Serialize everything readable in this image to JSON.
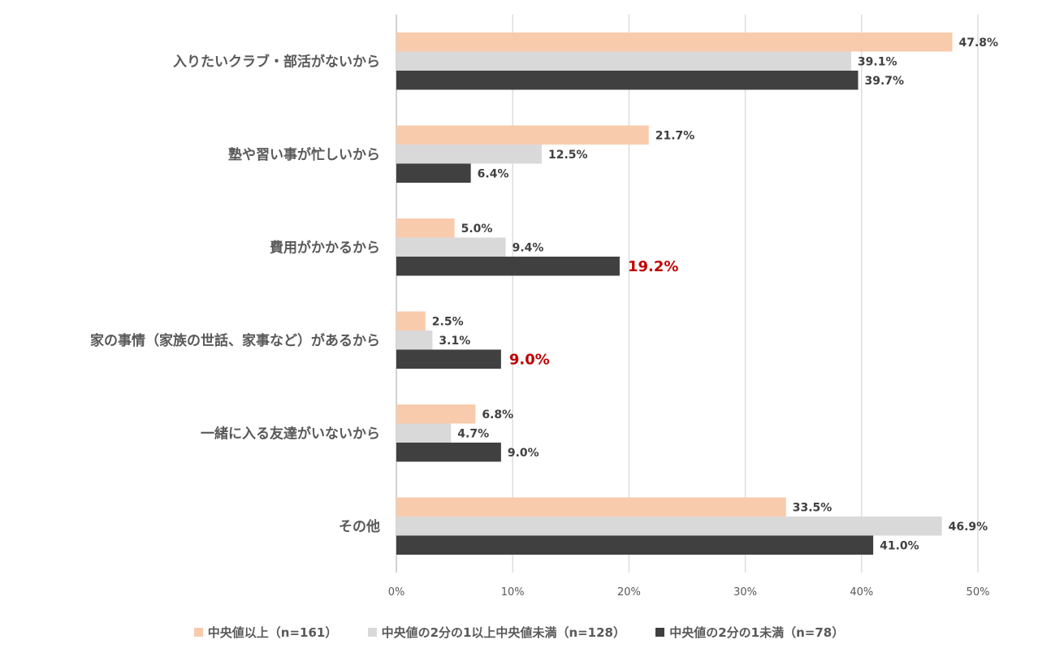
{
  "chart_data": {
    "type": "bar",
    "orientation": "horizontal",
    "categories": [
      "入りたいクラブ・部活がないから",
      "塾や習い事が忙しいから",
      "費用がかかるから",
      "家の事情（家族の世話、家事など）があるから",
      "一緒に入る友達がいないから",
      "その他"
    ],
    "series": [
      {
        "name": "中央値以上（n=161）",
        "color": "#f8cbad",
        "values": [
          47.8,
          21.7,
          5.0,
          2.5,
          6.8,
          33.5
        ],
        "labels": [
          "47.8%",
          "21.7%",
          "5.0%",
          "2.5%",
          "6.8%",
          "33.5%"
        ],
        "highlight": [
          false,
          false,
          false,
          false,
          false,
          false
        ]
      },
      {
        "name": "中央値の2分の1以上中央値未満（n=128）",
        "color": "#d9d9d9",
        "values": [
          39.1,
          12.5,
          9.4,
          3.1,
          4.7,
          46.9
        ],
        "labels": [
          "39.1%",
          "12.5%",
          "9.4%",
          "3.1%",
          "4.7%",
          "46.9%"
        ],
        "highlight": [
          false,
          false,
          false,
          false,
          false,
          false
        ]
      },
      {
        "name": "中央値の2分の1未満（n=78）",
        "color": "#404040",
        "values": [
          39.7,
          6.4,
          19.2,
          9.0,
          9.0,
          41.0
        ],
        "labels": [
          "39.7%",
          "6.4%",
          "19.2%",
          "9.0%",
          "9.0%",
          "41.0%"
        ],
        "highlight": [
          false,
          false,
          true,
          true,
          false,
          false
        ]
      }
    ],
    "xlim": [
      0,
      50
    ],
    "xticks": [
      0,
      10,
      20,
      30,
      40,
      50
    ],
    "xtick_labels": [
      "0%",
      "10%",
      "20%",
      "30%",
      "40%",
      "50%"
    ],
    "highlight_color": "#c00000",
    "grid": "vertical",
    "legend": "bottom",
    "title": "",
    "xlabel": "",
    "ylabel": ""
  }
}
